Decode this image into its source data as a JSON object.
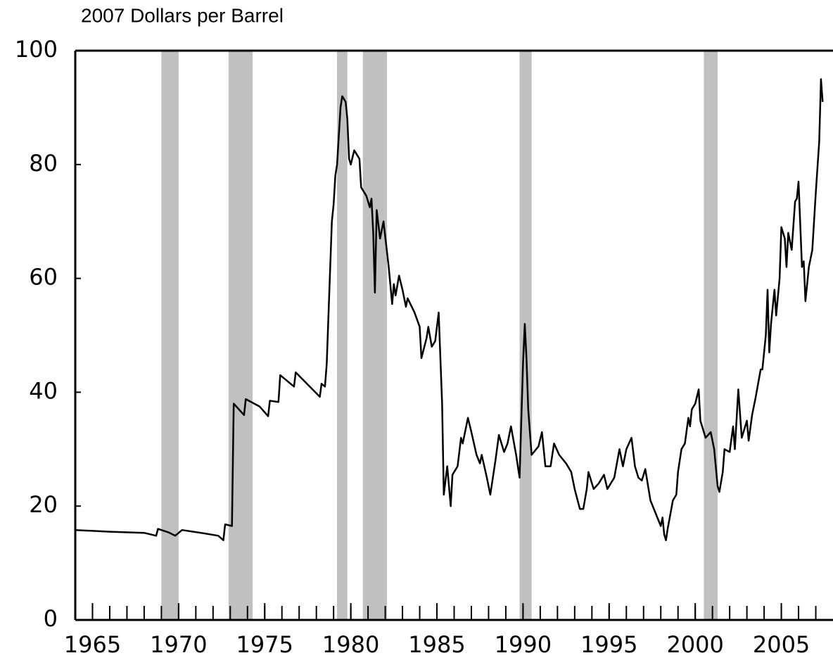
{
  "chart_data": {
    "type": "line",
    "y_axis_label": "2007 Dollars per Barrel",
    "x": [
      1964.0,
      1966.0,
      1968.0,
      1968.7,
      1968.8,
      1969.4,
      1969.8,
      1970.2,
      1971.5,
      1972.3,
      1972.6,
      1972.7,
      1973.1,
      1973.2,
      1973.8,
      1973.9,
      1974.7,
      1975.2,
      1975.3,
      1975.8,
      1975.9,
      1976.5,
      1976.7,
      1976.8,
      1978.2,
      1978.3,
      1978.5,
      1978.6,
      1978.9,
      1979.0,
      1979.1,
      1979.2,
      1979.4,
      1979.5,
      1979.7,
      1979.8,
      1979.9,
      1980.0,
      1980.2,
      1980.5,
      1980.6,
      1980.9,
      1981.1,
      1981.2,
      1981.3,
      1981.4,
      1981.5,
      1981.7,
      1981.9,
      1982.2,
      1982.4,
      1982.5,
      1982.6,
      1982.8,
      1983.0,
      1983.2,
      1983.3,
      1983.7,
      1984.0,
      1984.1,
      1984.4,
      1984.5,
      1984.7,
      1984.9,
      1985.1,
      1985.3,
      1985.4,
      1985.6,
      1985.8,
      1985.9,
      1986.2,
      1986.4,
      1986.5,
      1986.8,
      1987.0,
      1987.3,
      1987.5,
      1987.6,
      1987.9,
      1988.1,
      1988.4,
      1988.6,
      1988.9,
      1989.1,
      1989.3,
      1989.6,
      1989.8,
      1990.0,
      1990.1,
      1990.2,
      1990.3,
      1990.5,
      1990.9,
      1991.1,
      1991.3,
      1991.6,
      1991.8,
      1992.1,
      1992.5,
      1992.8,
      1993.0,
      1993.3,
      1993.5,
      1993.7,
      1993.8,
      1994.1,
      1994.4,
      1994.7,
      1994.9,
      1995.1,
      1995.3,
      1995.6,
      1995.8,
      1996.0,
      1996.3,
      1996.5,
      1996.7,
      1996.9,
      1997.1,
      1997.4,
      1997.8,
      1998.0,
      1998.1,
      1998.2,
      1998.3,
      1998.4,
      1998.7,
      1998.9,
      1999.0,
      1999.2,
      1999.4,
      1999.6,
      1999.7,
      1999.8,
      2000.0,
      2000.2,
      2000.3,
      2000.6,
      2000.9,
      2001.1,
      2001.3,
      2001.4,
      2001.6,
      2001.7,
      2002.0,
      2002.2,
      2002.3,
      2002.5,
      2002.7,
      2003.0,
      2003.1,
      2003.3,
      2003.5,
      2003.8,
      2003.9,
      2004.1,
      2004.2,
      2004.3,
      2004.4,
      2004.6,
      2004.7,
      2004.9,
      2005.0,
      2005.2,
      2005.3,
      2005.4,
      2005.6,
      2005.8,
      2005.9,
      2006.0,
      2006.2,
      2006.3,
      2006.4,
      2006.6,
      2006.8,
      2007.0,
      2007.2,
      2007.3,
      2007.4
    ],
    "series": [
      {
        "color": "#000000",
        "values": [
          15.8,
          15.5,
          15.3,
          14.8,
          16.0,
          15.4,
          14.8,
          15.8,
          15.2,
          14.8,
          14.0,
          16.8,
          16.5,
          38,
          36,
          38.8,
          37.5,
          35.8,
          38.5,
          38.3,
          43,
          41.5,
          41,
          43.5,
          39.2,
          41.5,
          41,
          45,
          70,
          73,
          78,
          80,
          90,
          92,
          91,
          88,
          81,
          80,
          82.5,
          81,
          76,
          74.5,
          72.5,
          74,
          68,
          57.5,
          72,
          67,
          70,
          62,
          55.5,
          59,
          57,
          60.5,
          58,
          55,
          56.5,
          54,
          51.5,
          46,
          49.5,
          51.5,
          48,
          49,
          54,
          38,
          22,
          27,
          20,
          25.5,
          27,
          32,
          31,
          35.5,
          33,
          29,
          27.5,
          29,
          25,
          22,
          28,
          32.5,
          29.5,
          31,
          34,
          29,
          25,
          45,
          52,
          46,
          37,
          29,
          30.5,
          33,
          27,
          27,
          31,
          29,
          27.5,
          26,
          23,
          19.5,
          19.5,
          23,
          26,
          23,
          24,
          25.5,
          23,
          24,
          25,
          30,
          27,
          30,
          32,
          27,
          25,
          24.5,
          26.5,
          21,
          18,
          16.5,
          18,
          15,
          14,
          16,
          21,
          22,
          26,
          30,
          31,
          35.5,
          34,
          37,
          38,
          40.5,
          35,
          32,
          33,
          30,
          23.5,
          22.5,
          26,
          30,
          29.5,
          34,
          30,
          40.5,
          32,
          35,
          31.5,
          36,
          39,
          44,
          44,
          50,
          58,
          47,
          52,
          58,
          53.5,
          60,
          69,
          67,
          62,
          68,
          65,
          73.5,
          74,
          77,
          62,
          63,
          56,
          62,
          65,
          75,
          84,
          95,
          91
        ]
      }
    ],
    "shaded_periods": [
      {
        "start": 1969.0,
        "end": 1970.0
      },
      {
        "start": 1972.9,
        "end": 1974.3
      },
      {
        "start": 1979.2,
        "end": 1979.8
      },
      {
        "start": 1980.7,
        "end": 1982.1
      },
      {
        "start": 1989.8,
        "end": 1990.5
      },
      {
        "start": 2000.5,
        "end": 2001.3
      }
    ],
    "shade_color": "#c0c0c0",
    "xlim": [
      1964,
      2008
    ],
    "xticks": [
      1965,
      1970,
      1975,
      1980,
      1985,
      1990,
      1995,
      2000,
      2005
    ],
    "xminorticks": [
      1965,
      1966,
      1967,
      1968,
      1969,
      1970,
      1971,
      1972,
      1973,
      1974,
      1975,
      1976,
      1977,
      1978,
      1979,
      1980,
      1981,
      1982,
      1983,
      1984,
      1985,
      1986,
      1987,
      1988,
      1989,
      1990,
      1991,
      1992,
      1993,
      1994,
      1995,
      1996,
      1997,
      1998,
      1999,
      2000,
      2001,
      2002,
      2003,
      2004,
      2005,
      2006,
      2007
    ],
    "ylim": [
      0,
      100
    ],
    "yticks": [
      0,
      20,
      40,
      60,
      80,
      100
    ],
    "grid": false
  }
}
